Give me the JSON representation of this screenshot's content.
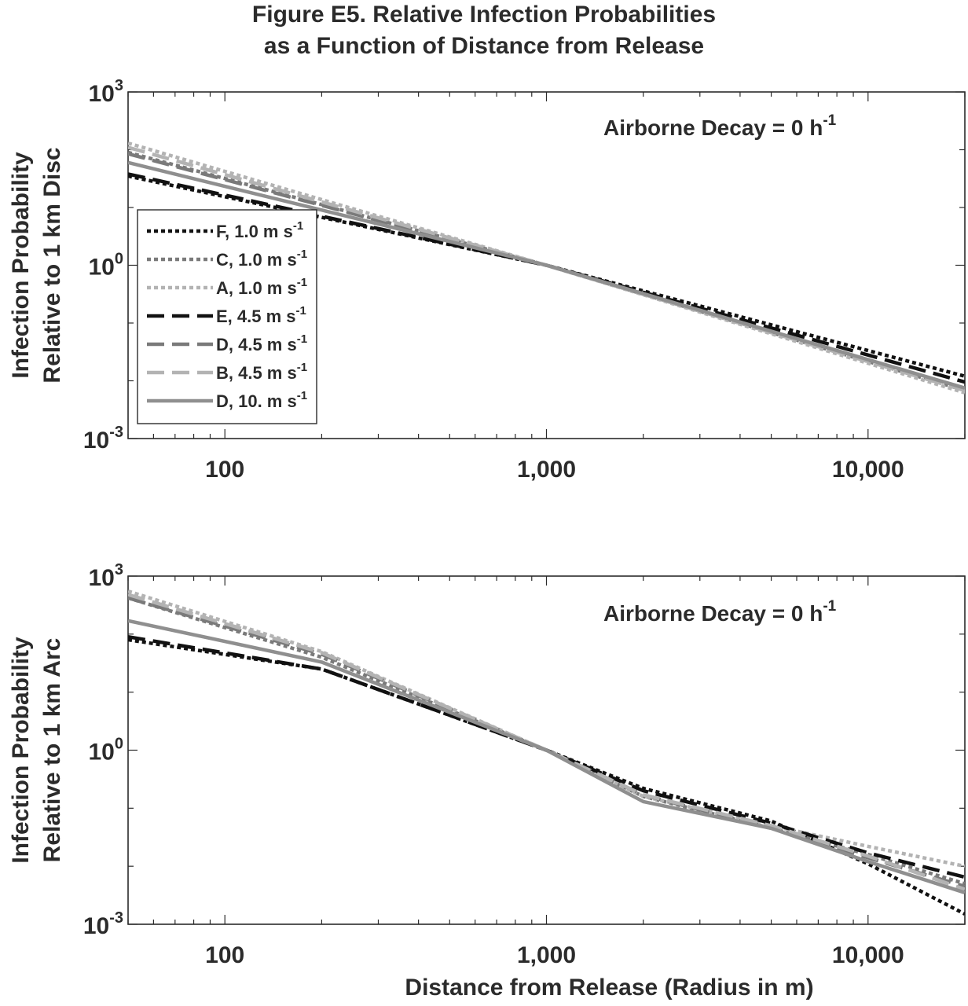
{
  "figure": {
    "title_line1": "Figure E5. Relative Infection Probabilities",
    "title_line2": "as a Function of Distance from Release"
  },
  "colors": {
    "black": "#111111",
    "dark_gray": "#7a7a7a",
    "light_gray": "#b3b3b3",
    "solid_gray": "#8f8f8f",
    "axis": "#2b2b2b",
    "text": "#2b2b2b"
  },
  "chart_data": [
    {
      "type": "line",
      "panel": "top",
      "annotation": {
        "text": "Airborne Decay = 0 h",
        "superscript": "-1"
      },
      "ylabel_line1": "Infection Probability",
      "ylabel_line2": "Relative to 1 km Disc",
      "xlabel": "",
      "x_scale": "log",
      "y_scale": "log",
      "xlim": [
        50,
        20000
      ],
      "ylim": [
        0.001,
        1000
      ],
      "x_ticks": [
        {
          "value": 100,
          "label": "100"
        },
        {
          "value": 1000,
          "label": "1,000"
        },
        {
          "value": 10000,
          "label": "10,000"
        }
      ],
      "y_ticks": [
        {
          "value": 0.001,
          "base": "10",
          "exp": "-3"
        },
        {
          "value": 1,
          "base": "10",
          "exp": "0"
        },
        {
          "value": 1000,
          "base": "10",
          "exp": "3"
        }
      ],
      "legend": {
        "position": "left",
        "entries": [
          {
            "label": "F, 1.0 m s",
            "sup": "-1"
          },
          {
            "label": "C, 1.0 m s",
            "sup": "-1"
          },
          {
            "label": "A, 1.0 m s",
            "sup": "-1"
          },
          {
            "label": "E, 4.5 m s",
            "sup": "-1"
          },
          {
            "label": "D, 4.5 m s",
            "sup": "-1"
          },
          {
            "label": "B, 4.5 m s",
            "sup": "-1"
          },
          {
            "label": "D, 10. m s",
            "sup": "-1"
          }
        ]
      },
      "series": [
        {
          "name": "F, 1.0 m s-1",
          "color": "black",
          "dash": "dot",
          "x": [
            50,
            1000,
            20000
          ],
          "y": [
            35,
            1,
            0.012
          ]
        },
        {
          "name": "C, 1.0 m s-1",
          "color": "dark_gray",
          "dash": "dot",
          "x": [
            50,
            1000,
            20000
          ],
          "y": [
            90,
            1,
            0.0068
          ]
        },
        {
          "name": "A, 1.0 m s-1",
          "color": "light_gray",
          "dash": "dot",
          "x": [
            50,
            1000,
            20000
          ],
          "y": [
            130,
            1,
            0.0062
          ]
        },
        {
          "name": "E, 4.5 m s-1",
          "color": "black",
          "dash": "dash",
          "x": [
            50,
            1000,
            20000
          ],
          "y": [
            38,
            1,
            0.0095
          ]
        },
        {
          "name": "D, 4.5 m s-1",
          "color": "dark_gray",
          "dash": "dash",
          "x": [
            50,
            1000,
            20000
          ],
          "y": [
            85,
            1,
            0.0074
          ]
        },
        {
          "name": "B, 4.5 m s-1",
          "color": "light_gray",
          "dash": "dash",
          "x": [
            50,
            1000,
            20000
          ],
          "y": [
            110,
            1,
            0.0068
          ]
        },
        {
          "name": "D, 10. m s-1",
          "color": "solid_gray",
          "dash": "solid",
          "x": [
            50,
            1000,
            20000
          ],
          "y": [
            60,
            1,
            0.0075
          ]
        }
      ]
    },
    {
      "type": "line",
      "panel": "bottom",
      "annotation": {
        "text": "Airborne Decay = 0 h",
        "superscript": "-1"
      },
      "ylabel_line1": "Infection Probability",
      "ylabel_line2": "Relative to 1 km Arc",
      "xlabel": "Distance from Release (Radius in m)",
      "x_scale": "log",
      "y_scale": "log",
      "xlim": [
        50,
        20000
      ],
      "ylim": [
        0.001,
        1000
      ],
      "x_ticks": [
        {
          "value": 100,
          "label": "100"
        },
        {
          "value": 1000,
          "label": "1,000"
        },
        {
          "value": 10000,
          "label": "10,000"
        }
      ],
      "y_ticks": [
        {
          "value": 0.001,
          "base": "10",
          "exp": "-3"
        },
        {
          "value": 1,
          "base": "10",
          "exp": "0"
        },
        {
          "value": 1000,
          "base": "10",
          "exp": "3"
        }
      ],
      "series": [
        {
          "name": "F, 1.0 m s-1",
          "color": "black",
          "dash": "dot",
          "x": [
            50,
            200,
            1000,
            2000,
            5000,
            10000,
            20000
          ],
          "y": [
            80,
            25,
            1,
            0.22,
            0.06,
            0.011,
            0.0015
          ]
        },
        {
          "name": "C, 1.0 m s-1",
          "color": "dark_gray",
          "dash": "dot",
          "x": [
            50,
            200,
            1000,
            2000,
            5000,
            10000,
            20000
          ],
          "y": [
            420,
            40,
            1,
            0.16,
            0.045,
            0.016,
            0.005
          ]
        },
        {
          "name": "A, 1.0 m s-1",
          "color": "light_gray",
          "dash": "dot",
          "x": [
            50,
            200,
            1000,
            2000,
            5000,
            10000,
            20000
          ],
          "y": [
            550,
            50,
            1,
            0.16,
            0.05,
            0.022,
            0.01
          ]
        },
        {
          "name": "E, 4.5 m s-1",
          "color": "black",
          "dash": "dash",
          "x": [
            50,
            200,
            1000,
            2000,
            5000,
            10000,
            20000
          ],
          "y": [
            90,
            25,
            1,
            0.2,
            0.055,
            0.017,
            0.0065
          ]
        },
        {
          "name": "D, 4.5 m s-1",
          "color": "dark_gray",
          "dash": "dash",
          "x": [
            50,
            200,
            1000,
            2000,
            5000,
            10000,
            20000
          ],
          "y": [
            420,
            45,
            1,
            0.17,
            0.045,
            0.014,
            0.0045
          ]
        },
        {
          "name": "B, 4.5 m s-1",
          "color": "light_gray",
          "dash": "dash",
          "x": [
            50,
            200,
            1000,
            2000,
            5000,
            10000,
            20000
          ],
          "y": [
            480,
            48,
            1,
            0.17,
            0.05,
            0.015,
            0.004
          ]
        },
        {
          "name": "D, 10. m s-1",
          "color": "solid_gray",
          "dash": "solid",
          "x": [
            50,
            200,
            1000,
            2000,
            5000,
            10000,
            20000
          ],
          "y": [
            170,
            33,
            1,
            0.13,
            0.045,
            0.012,
            0.0035
          ]
        }
      ]
    }
  ]
}
